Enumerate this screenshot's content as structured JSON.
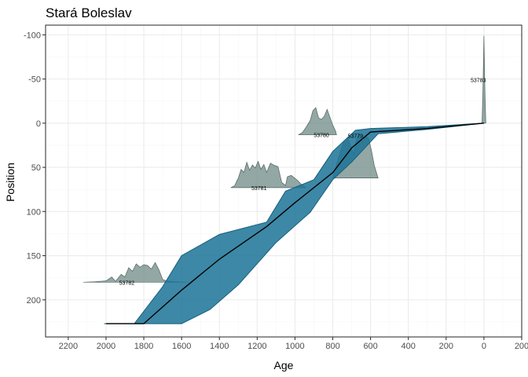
{
  "chart_data": {
    "type": "area",
    "title": "Stará Boleslav",
    "xlabel": "Age",
    "ylabel": "Position",
    "x_reversed": true,
    "y_reversed": true,
    "xlim": [
      2320,
      -200
    ],
    "ylim": [
      -111,
      242
    ],
    "x_ticks": [
      2200,
      2000,
      1800,
      1600,
      1400,
      1200,
      1000,
      800,
      600,
      400,
      200,
      0,
      -200
    ],
    "x_tick_labels": [
      "2200",
      "2000",
      "1800",
      "1600",
      "1400",
      "1200",
      "1000",
      "800",
      "600",
      "400",
      "200",
      "0",
      "200"
    ],
    "y_ticks": [
      -100,
      -50,
      0,
      50,
      100,
      150,
      200
    ],
    "y_tick_labels": [
      "-100",
      "-50",
      "0",
      "50",
      "100",
      "150",
      "200"
    ],
    "grid": true,
    "colors": {
      "envelope_fill": "#1b7396",
      "envelope_stroke": "#155f7d",
      "date_fill": "#6f8a86",
      "date_stroke": "#4f6461",
      "median_line": "#000000"
    },
    "age_depth_median": [
      {
        "age": 2000,
        "depth": 227
      },
      {
        "age": 1800,
        "depth": 227
      },
      {
        "age": 1600,
        "depth": 189
      },
      {
        "age": 1400,
        "depth": 154
      },
      {
        "age": 1150,
        "depth": 117
      },
      {
        "age": 1000,
        "depth": 90
      },
      {
        "age": 800,
        "depth": 56
      },
      {
        "age": 700,
        "depth": 28
      },
      {
        "age": 600,
        "depth": 10
      },
      {
        "age": 300,
        "depth": 6
      },
      {
        "age": 0,
        "depth": 0
      }
    ],
    "envelope_upper": [
      {
        "age": 1850,
        "depth": 227
      },
      {
        "age": 1700,
        "depth": 185
      },
      {
        "age": 1600,
        "depth": 150
      },
      {
        "age": 1400,
        "depth": 126
      },
      {
        "age": 1150,
        "depth": 112
      },
      {
        "age": 1050,
        "depth": 77
      },
      {
        "age": 900,
        "depth": 64
      },
      {
        "age": 800,
        "depth": 32
      },
      {
        "age": 680,
        "depth": 8
      },
      {
        "age": 600,
        "depth": 6
      },
      {
        "age": 300,
        "depth": 4
      },
      {
        "age": 0,
        "depth": 0
      }
    ],
    "envelope_lower": [
      {
        "age": 0,
        "depth": 0
      },
      {
        "age": 300,
        "depth": 7
      },
      {
        "age": 560,
        "depth": 12
      },
      {
        "age": 700,
        "depth": 44
      },
      {
        "age": 800,
        "depth": 64
      },
      {
        "age": 920,
        "depth": 101
      },
      {
        "age": 1100,
        "depth": 135
      },
      {
        "age": 1300,
        "depth": 183
      },
      {
        "age": 1450,
        "depth": 211
      },
      {
        "age": 1600,
        "depth": 227
      },
      {
        "age": 2010,
        "depth": 227
      }
    ],
    "dates": [
      {
        "label": "53782",
        "depth": 180,
        "label_age": 1890,
        "span": [
          2120,
          1570
        ],
        "profile": [
          [
            2120,
            0
          ],
          [
            2060,
            0.01
          ],
          [
            2000,
            0.03
          ],
          [
            1970,
            0.12
          ],
          [
            1950,
            0.02
          ],
          [
            1920,
            0.18
          ],
          [
            1900,
            0.12
          ],
          [
            1880,
            0.33
          ],
          [
            1860,
            0.25
          ],
          [
            1840,
            0.42
          ],
          [
            1820,
            0.34
          ],
          [
            1800,
            0.4
          ],
          [
            1780,
            0.38
          ],
          [
            1760,
            0.3
          ],
          [
            1740,
            0.45
          ],
          [
            1720,
            0.28
          ],
          [
            1700,
            0.06
          ],
          [
            1680,
            0.03
          ],
          [
            1640,
            0.01
          ],
          [
            1570,
            0
          ]
        ]
      },
      {
        "label": "53781",
        "depth": 73,
        "label_age": 1190,
        "span": [
          1340,
          940
        ],
        "profile": [
          [
            1340,
            0
          ],
          [
            1320,
            0.04
          ],
          [
            1300,
            0.22
          ],
          [
            1285,
            0.42
          ],
          [
            1270,
            0.35
          ],
          [
            1255,
            0.58
          ],
          [
            1240,
            0.4
          ],
          [
            1225,
            0.52
          ],
          [
            1210,
            0.45
          ],
          [
            1195,
            0.6
          ],
          [
            1180,
            0.42
          ],
          [
            1165,
            0.53
          ],
          [
            1150,
            0.35
          ],
          [
            1130,
            0.56
          ],
          [
            1110,
            0.51
          ],
          [
            1090,
            0.48
          ],
          [
            1070,
            0.12
          ],
          [
            1050,
            0.05
          ],
          [
            1040,
            0.25
          ],
          [
            1020,
            0.28
          ],
          [
            990,
            0.18
          ],
          [
            960,
            0.05
          ],
          [
            940,
            0
          ]
        ]
      },
      {
        "label": "53780",
        "depth": 13,
        "label_age": 860,
        "span": [
          980,
          780
        ],
        "profile": [
          [
            980,
            0
          ],
          [
            960,
            0.05
          ],
          [
            940,
            0.18
          ],
          [
            920,
            0.32
          ],
          [
            905,
            0.55
          ],
          [
            890,
            0.62
          ],
          [
            875,
            0.38
          ],
          [
            860,
            0.35
          ],
          [
            845,
            0.42
          ],
          [
            830,
            0.58
          ],
          [
            815,
            0.4
          ],
          [
            800,
            0.22
          ],
          [
            785,
            0.08
          ],
          [
            780,
            0
          ]
        ]
      },
      {
        "label": "53779",
        "depth": 62,
        "label_age": 680,
        "span": [
          800,
          560
        ],
        "profile": [
          [
            800,
            0
          ],
          [
            780,
            0.3
          ],
          [
            760,
            0.6
          ],
          [
            740,
            0.85
          ],
          [
            720,
            0.92
          ],
          [
            700,
            0.65
          ],
          [
            690,
            0.55
          ],
          [
            670,
            0.95
          ],
          [
            660,
            1.0
          ],
          [
            650,
            0.88
          ],
          [
            640,
            0.82
          ],
          [
            625,
            0.97
          ],
          [
            610,
            0.9
          ],
          [
            595,
            0.62
          ],
          [
            580,
            0.28
          ],
          [
            560,
            0
          ]
        ]
      },
      {
        "label": "53783",
        "depth": 0,
        "label_age": 30,
        "span": [
          10,
          -10
        ],
        "profile": [
          [
            10,
            0
          ],
          [
            5,
            0.4
          ],
          [
            0,
            1.0
          ],
          [
            -5,
            0.4
          ],
          [
            -10,
            0
          ]
        ]
      }
    ]
  }
}
